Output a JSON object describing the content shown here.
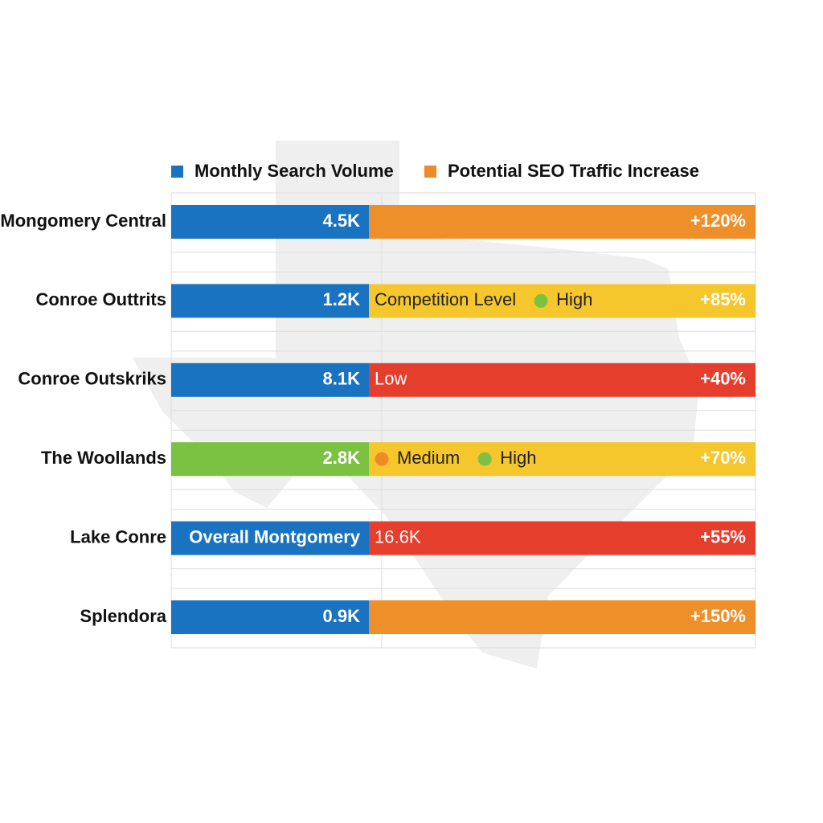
{
  "legend": [
    {
      "label": "Monthly Search Volume",
      "color": "#1a73c0"
    },
    {
      "label": "Potential SEO Traffic Increase",
      "color": "#ef8a2a"
    }
  ],
  "rows": [
    {
      "label": "Mongomery Central",
      "left": {
        "text": "4.5K",
        "color": "#1a73c0"
      },
      "right": {
        "color": "#ef8f2a",
        "text_color": "#ffffff",
        "items": [],
        "value": "+120%"
      }
    },
    {
      "label": "Conroe Outtrits",
      "left": {
        "text": "1.2K",
        "color": "#1a73c0"
      },
      "right": {
        "color": "#f6c72d",
        "text_color": "#222222",
        "items": [
          {
            "text": "Competition Level"
          },
          {
            "dot": "#7cc242",
            "text": "High"
          }
        ],
        "value": "+85%"
      }
    },
    {
      "label": "Conroe Outskriks",
      "left": {
        "text": "8.1K",
        "color": "#1a73c0"
      },
      "right": {
        "color": "#e53e2d",
        "text_color": "#ffffff",
        "items": [
          {
            "text": "Low"
          }
        ],
        "value": "+40%"
      }
    },
    {
      "label": "The Woollands",
      "left": {
        "text": "2.8K",
        "color": "#7cc242"
      },
      "right": {
        "color": "#f6c72d",
        "text_color": "#222222",
        "items": [
          {
            "dot": "#ef8a2a",
            "text": "Medium"
          },
          {
            "dot": "#7cc242",
            "text": "High"
          }
        ],
        "value": "+70%"
      }
    },
    {
      "label": "Lake Conre",
      "left": {
        "text": "Overall Montgomery",
        "color": "#1a73c0"
      },
      "right": {
        "color": "#e53e2d",
        "text_color": "#ffffff",
        "items": [
          {
            "text": "16.6K"
          }
        ],
        "value": "+55%"
      }
    },
    {
      "label": "Splendora",
      "left": {
        "text": "0.9K",
        "color": "#1a73c0"
      },
      "right": {
        "color": "#ef8f2a",
        "text_color": "#ffffff",
        "items": [],
        "value": "+150%"
      }
    }
  ]
}
